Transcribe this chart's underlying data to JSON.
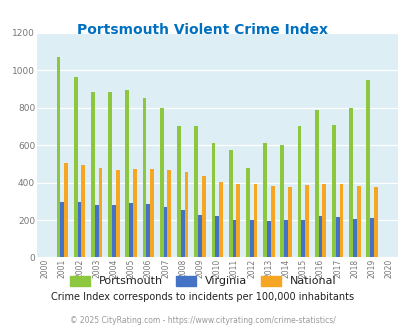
{
  "title": "Portsmouth Violent Crime Index",
  "years": [
    2000,
    2001,
    2002,
    2003,
    2004,
    2005,
    2006,
    2007,
    2008,
    2009,
    2010,
    2011,
    2012,
    2013,
    2014,
    2015,
    2016,
    2017,
    2018,
    2019,
    2020
  ],
  "portsmouth": [
    null,
    1070,
    965,
    885,
    885,
    895,
    855,
    800,
    700,
    700,
    610,
    575,
    480,
    610,
    600,
    700,
    790,
    710,
    800,
    950,
    null
  ],
  "virginia": [
    null,
    295,
    295,
    280,
    280,
    290,
    288,
    270,
    255,
    228,
    220,
    198,
    200,
    192,
    198,
    200,
    222,
    215,
    205,
    212,
    null
  ],
  "national": [
    null,
    505,
    495,
    480,
    465,
    475,
    475,
    465,
    455,
    435,
    405,
    395,
    390,
    380,
    375,
    385,
    395,
    395,
    380,
    375,
    null
  ],
  "portsmouth_color": "#8dc63f",
  "virginia_color": "#4472c4",
  "national_color": "#f6a623",
  "bg_color": "#ddeef5",
  "title_color": "#0070c0",
  "ylim": [
    0,
    1200
  ],
  "ylabel_ticks": [
    0,
    200,
    400,
    600,
    800,
    1000,
    1200
  ],
  "subtitle": "Crime Index corresponds to incidents per 100,000 inhabitants",
  "footer": "© 2025 CityRating.com - https://www.cityrating.com/crime-statistics/",
  "legend_labels": [
    "Portsmouth",
    "Virginia",
    "National"
  ],
  "bar_width": 0.22
}
